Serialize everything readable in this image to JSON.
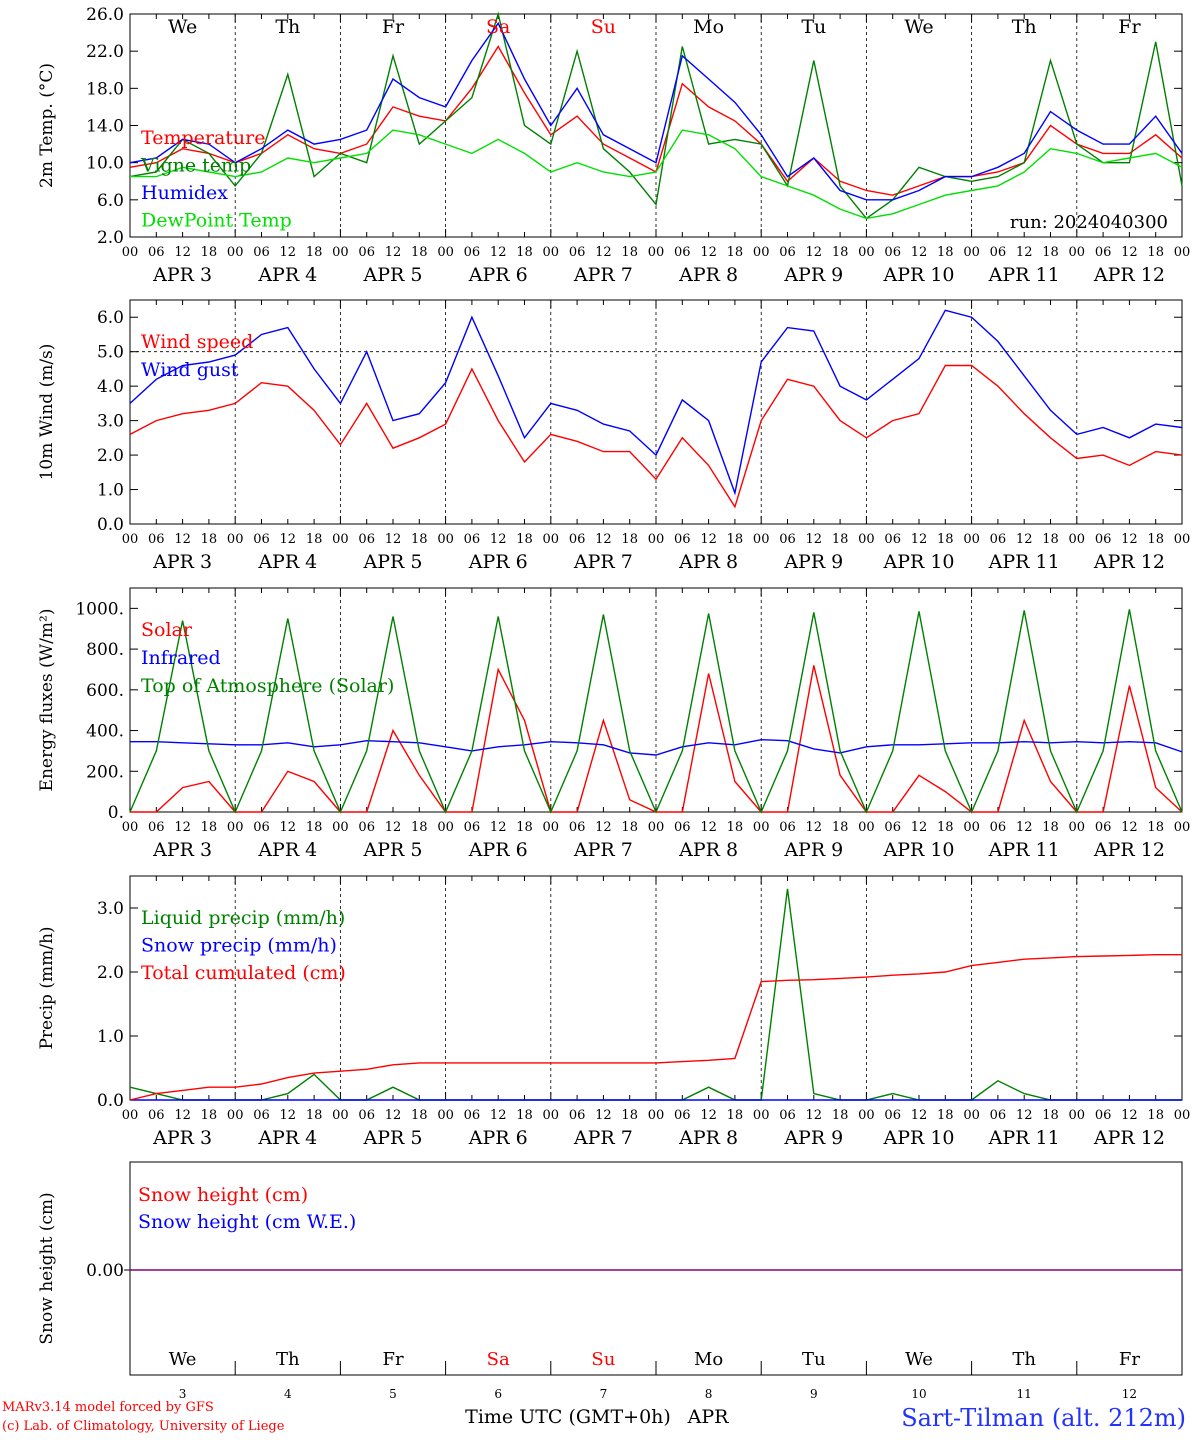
{
  "chart_data": [
    {
      "type": "line",
      "panel": "temperature",
      "ylabel": "2m Temp. (°C)",
      "ylim": [
        2.0,
        26.0
      ],
      "yticks": [
        "2.0",
        "6.0",
        "10.0",
        "14.0",
        "18.0",
        "22.0",
        "26.0"
      ],
      "run_label": "run: 2024040300",
      "weekdays": [
        "We",
        "Th",
        "Fr",
        "Sa",
        "Su",
        "Mo",
        "Tu",
        "We",
        "Th",
        "Fr"
      ],
      "x_hours": [
        0,
        6,
        12,
        18,
        24,
        30,
        36,
        42,
        48,
        54,
        60,
        66,
        72,
        78,
        84,
        90,
        96,
        102,
        108,
        114,
        120,
        126,
        132,
        138,
        144,
        150,
        156,
        162,
        168,
        174,
        180,
        186,
        192,
        198,
        204,
        210,
        216,
        222,
        228,
        234,
        240
      ],
      "series": [
        {
          "name": "Temperature",
          "color": "#ff0000",
          "values": [
            9.5,
            10.0,
            11.5,
            11.0,
            10.0,
            11.0,
            13.0,
            11.5,
            11.0,
            12.0,
            16.0,
            15.0,
            14.5,
            18.0,
            22.5,
            17.5,
            13.0,
            15.0,
            12.0,
            10.5,
            9.0,
            18.5,
            16.0,
            14.5,
            12.0,
            8.0,
            10.5,
            8.0,
            7.0,
            6.5,
            7.5,
            8.5,
            8.5,
            9.0,
            10.0,
            14.0,
            12.0,
            11.0,
            11.0,
            13.0,
            10.5
          ]
        },
        {
          "name": "Vigne temp",
          "color": "#008000",
          "values": [
            8.5,
            9.0,
            12.5,
            11.0,
            7.5,
            11.0,
            19.5,
            8.5,
            11.0,
            10.0,
            21.5,
            12.0,
            14.5,
            17.0,
            26.0,
            14.0,
            12.0,
            22.0,
            11.5,
            9.0,
            5.5,
            22.5,
            12.0,
            12.5,
            12.0,
            7.5,
            21.0,
            7.5,
            4.0,
            6.0,
            9.5,
            8.5,
            8.0,
            8.5,
            10.0,
            21.0,
            12.0,
            10.0,
            10.0,
            23.0,
            7.5
          ]
        },
        {
          "name": "Humidex",
          "color": "#0000ff",
          "values": [
            10.0,
            10.5,
            12.5,
            12.0,
            10.0,
            11.5,
            13.5,
            12.0,
            12.5,
            13.5,
            19.0,
            17.0,
            16.0,
            21.0,
            25.0,
            19.0,
            14.0,
            18.0,
            13.0,
            11.5,
            10.0,
            21.5,
            19.0,
            16.5,
            13.0,
            8.5,
            10.5,
            7.0,
            6.0,
            6.0,
            7.0,
            8.5,
            8.5,
            9.5,
            11.0,
            15.5,
            13.5,
            12.0,
            12.0,
            15.0,
            11.0
          ]
        },
        {
          "name": "DewPoint Temp",
          "color": "#00e000",
          "values": [
            8.5,
            8.5,
            9.5,
            9.0,
            8.5,
            9.0,
            10.5,
            10.0,
            10.5,
            11.0,
            13.5,
            13.0,
            12.0,
            11.0,
            12.5,
            11.0,
            9.0,
            10.0,
            9.0,
            8.5,
            9.0,
            13.5,
            13.0,
            11.5,
            8.5,
            7.5,
            6.5,
            5.0,
            4.0,
            4.5,
            5.5,
            6.5,
            7.0,
            7.5,
            9.0,
            11.5,
            11.0,
            10.0,
            10.5,
            11.0,
            9.5
          ]
        }
      ]
    },
    {
      "type": "line",
      "panel": "wind",
      "ylabel": "10m Wind (m/s)",
      "ylim": [
        0.0,
        6.5
      ],
      "yticks": [
        "0.0",
        "1.0",
        "2.0",
        "3.0",
        "4.0",
        "5.0",
        "6.0"
      ],
      "ref_line": 5.0,
      "x_hours": [
        0,
        6,
        12,
        18,
        24,
        30,
        36,
        42,
        48,
        54,
        60,
        66,
        72,
        78,
        84,
        90,
        96,
        102,
        108,
        114,
        120,
        126,
        132,
        138,
        144,
        150,
        156,
        162,
        168,
        174,
        180,
        186,
        192,
        198,
        204,
        210,
        216,
        222,
        228,
        234,
        240
      ],
      "series": [
        {
          "name": "Wind speed",
          "color": "#ff0000",
          "values": [
            2.6,
            3.0,
            3.2,
            3.3,
            3.5,
            4.1,
            4.0,
            3.3,
            2.3,
            3.5,
            2.2,
            2.5,
            2.9,
            4.5,
            3.0,
            1.8,
            2.6,
            2.4,
            2.1,
            2.1,
            1.3,
            2.5,
            1.7,
            0.5,
            3.0,
            4.2,
            4.0,
            3.0,
            2.5,
            3.0,
            3.2,
            4.6,
            4.6,
            4.0,
            3.2,
            2.5,
            1.9,
            2.0,
            1.7,
            2.1,
            2.0
          ]
        },
        {
          "name": "Wind gust",
          "color": "#0000ff",
          "values": [
            3.5,
            4.2,
            4.6,
            4.7,
            4.9,
            5.5,
            5.7,
            4.5,
            3.5,
            5.0,
            3.0,
            3.2,
            4.1,
            6.0,
            4.3,
            2.5,
            3.5,
            3.3,
            2.9,
            2.7,
            2.0,
            3.6,
            3.0,
            0.9,
            4.7,
            5.7,
            5.6,
            4.0,
            3.6,
            4.2,
            4.8,
            6.2,
            6.0,
            5.3,
            4.3,
            3.3,
            2.6,
            2.8,
            2.5,
            2.9,
            2.8
          ]
        }
      ]
    },
    {
      "type": "line",
      "panel": "energy",
      "ylabel": "Energy fluxes (W/m²)",
      "ylim": [
        0,
        1100
      ],
      "yticks": [
        "0.",
        "200.",
        "400.",
        "600.",
        "800.",
        "1000."
      ],
      "x_hours": [
        0,
        6,
        12,
        18,
        24,
        30,
        36,
        42,
        48,
        54,
        60,
        66,
        72,
        78,
        84,
        90,
        96,
        102,
        108,
        114,
        120,
        126,
        132,
        138,
        144,
        150,
        156,
        162,
        168,
        174,
        180,
        186,
        192,
        198,
        204,
        210,
        216,
        222,
        228,
        234,
        240
      ],
      "series": [
        {
          "name": "Solar",
          "color": "#ff0000",
          "values": [
            0,
            0,
            120,
            150,
            0,
            0,
            200,
            150,
            0,
            0,
            400,
            180,
            0,
            0,
            700,
            450,
            0,
            0,
            450,
            60,
            0,
            0,
            680,
            150,
            0,
            0,
            720,
            180,
            0,
            0,
            180,
            100,
            0,
            0,
            450,
            150,
            0,
            0,
            620,
            120,
            0
          ]
        },
        {
          "name": "Infrared",
          "color": "#0000ff",
          "values": [
            345,
            345,
            340,
            335,
            330,
            330,
            340,
            320,
            330,
            350,
            345,
            340,
            320,
            300,
            320,
            330,
            345,
            340,
            330,
            290,
            280,
            320,
            340,
            330,
            355,
            350,
            310,
            290,
            320,
            330,
            330,
            335,
            340,
            340,
            345,
            340,
            345,
            340,
            345,
            340,
            295
          ]
        },
        {
          "name": "Top of Atmosphere (Solar)",
          "color": "#008000",
          "values": [
            0,
            300,
            940,
            300,
            0,
            300,
            950,
            300,
            0,
            300,
            960,
            300,
            0,
            300,
            960,
            300,
            0,
            300,
            970,
            300,
            0,
            300,
            975,
            300,
            0,
            300,
            980,
            300,
            0,
            300,
            985,
            300,
            0,
            300,
            990,
            300,
            0,
            300,
            995,
            300,
            0
          ]
        }
      ]
    },
    {
      "type": "line",
      "panel": "precip",
      "ylabel": "Precip (mm/h)",
      "ylim": [
        0.0,
        3.5
      ],
      "yticks": [
        "0.0",
        "1.0",
        "2.0",
        "3.0"
      ],
      "x_hours": [
        0,
        6,
        12,
        18,
        24,
        30,
        36,
        42,
        48,
        54,
        60,
        66,
        72,
        78,
        84,
        90,
        96,
        102,
        108,
        114,
        120,
        126,
        132,
        138,
        144,
        150,
        156,
        162,
        168,
        174,
        180,
        186,
        192,
        198,
        204,
        210,
        216,
        222,
        228,
        234,
        240
      ],
      "series": [
        {
          "name": "Liquid precip (mm/h)",
          "color": "#008000",
          "values": [
            0.2,
            0.1,
            0.0,
            0.0,
            0.0,
            0.0,
            0.1,
            0.4,
            0.0,
            0.0,
            0.2,
            0.0,
            0.0,
            0.0,
            0.0,
            0.0,
            0.0,
            0.0,
            0.0,
            0.0,
            0.0,
            0.0,
            0.2,
            0.0,
            0.0,
            3.3,
            0.1,
            0.0,
            0.0,
            0.1,
            0.0,
            0.0,
            0.0,
            0.3,
            0.1,
            0.0,
            0.0,
            0.0,
            0.0,
            0.0,
            0.0
          ]
        },
        {
          "name": "Snow precip (mm/h)",
          "color": "#0000ff",
          "values": [
            0,
            0,
            0,
            0,
            0,
            0,
            0,
            0,
            0,
            0,
            0,
            0,
            0,
            0,
            0,
            0,
            0,
            0,
            0,
            0,
            0,
            0,
            0,
            0,
            0,
            0,
            0,
            0,
            0,
            0,
            0,
            0,
            0,
            0,
            0,
            0,
            0,
            0,
            0,
            0,
            0
          ]
        },
        {
          "name": "Total cumulated (cm)",
          "color": "#ff0000",
          "values": [
            0.0,
            0.1,
            0.15,
            0.2,
            0.2,
            0.25,
            0.35,
            0.42,
            0.45,
            0.48,
            0.55,
            0.58,
            0.58,
            0.58,
            0.58,
            0.58,
            0.58,
            0.58,
            0.58,
            0.58,
            0.58,
            0.6,
            0.62,
            0.65,
            1.85,
            1.87,
            1.88,
            1.9,
            1.92,
            1.95,
            1.97,
            2.0,
            2.1,
            2.15,
            2.2,
            2.22,
            2.24,
            2.25,
            2.26,
            2.27,
            2.27
          ]
        }
      ]
    },
    {
      "type": "line",
      "panel": "snow",
      "ylabel": "Snow height (cm)",
      "yticks": [
        "0.00"
      ],
      "series": [
        {
          "name": "Snow height (cm)",
          "color": "#ff0000",
          "values": [
            0,
            0
          ]
        },
        {
          "name": "Snow height (cm W.E.)",
          "color": "#0000ff",
          "values": [
            0,
            0
          ]
        }
      ]
    }
  ],
  "axes": {
    "hour_ticks": [
      "00",
      "06",
      "12",
      "18"
    ],
    "end_tick": "00",
    "date_labels": [
      "APR  3",
      "APR  4",
      "APR  5",
      "APR  6",
      "APR  7",
      "APR  8",
      "APR  9",
      "APR 10",
      "APR 11",
      "APR 12"
    ],
    "bottom_weekdays": [
      "We",
      "Th",
      "Fr",
      "Sa",
      "Su",
      "Mo",
      "Tu",
      "We",
      "Th",
      "Fr"
    ],
    "bottom_days": [
      "3",
      "4",
      "5",
      "6",
      "7",
      "8",
      "9",
      "10",
      "11",
      "12"
    ],
    "bottom_xlabel": "Time UTC (GMT+0h)",
    "bottom_month": "APR"
  },
  "footer": {
    "model_line": "MARv3.14 model forced by GFS",
    "credit_line": "(c) Lab. of Climatology, University of Liege",
    "station": "Sart-Tilman (alt. 212m)"
  },
  "colors": {
    "red": "#ff0000",
    "green": "#008000",
    "blue": "#0000ff",
    "lightgreen": "#00e000",
    "weekend": "#ff0000"
  }
}
